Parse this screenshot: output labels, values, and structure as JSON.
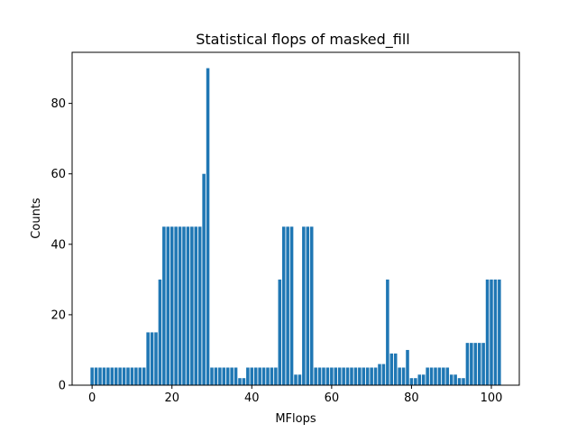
{
  "chart_data": {
    "type": "bar",
    "title": "Statistical flops of masked_fill",
    "xlabel": "MFlops",
    "ylabel": "Counts",
    "xlim": [
      -5,
      107
    ],
    "ylim": [
      0,
      94.5
    ],
    "xticks": [
      0,
      20,
      40,
      60,
      80,
      100
    ],
    "yticks": [
      0,
      20,
      40,
      60,
      80
    ],
    "bar_width": 0.8,
    "color": "#1f77b4",
    "grid": false,
    "x": [
      0,
      1,
      2,
      3,
      4,
      5,
      6,
      7,
      8,
      9,
      10,
      11,
      12,
      13,
      14,
      15,
      16,
      17,
      18,
      19,
      20,
      21,
      22,
      23,
      24,
      25,
      26,
      27,
      28,
      29,
      30,
      31,
      32,
      33,
      34,
      35,
      36,
      37,
      38,
      39,
      40,
      41,
      42,
      43,
      44,
      45,
      46,
      47,
      48,
      49,
      50,
      51,
      52,
      53,
      54,
      55,
      56,
      57,
      58,
      59,
      60,
      61,
      62,
      63,
      64,
      65,
      66,
      67,
      68,
      69,
      70,
      71,
      72,
      73,
      74,
      75,
      76,
      77,
      78,
      79,
      80,
      81,
      82,
      83,
      84,
      85,
      86,
      87,
      88,
      89,
      90,
      91,
      92,
      93,
      94,
      95,
      96,
      97,
      98,
      99,
      100,
      101,
      102
    ],
    "values": [
      5,
      5,
      5,
      5,
      5,
      5,
      5,
      5,
      5,
      5,
      5,
      5,
      5,
      5,
      15,
      15,
      15,
      30,
      45,
      45,
      45,
      45,
      45,
      45,
      45,
      45,
      45,
      45,
      60,
      90,
      5,
      5,
      5,
      5,
      5,
      5,
      5,
      2,
      2,
      5,
      5,
      5,
      5,
      5,
      5,
      5,
      5,
      30,
      45,
      45,
      45,
      3,
      3,
      45,
      45,
      45,
      5,
      5,
      5,
      5,
      5,
      5,
      5,
      5,
      5,
      5,
      5,
      5,
      5,
      5,
      5,
      5,
      6,
      6,
      30,
      9,
      9,
      5,
      5,
      10,
      2,
      2,
      3,
      3,
      5,
      5,
      5,
      5,
      5,
      5,
      3,
      3,
      2,
      2,
      12,
      12,
      12,
      12,
      12,
      30,
      30,
      30,
      30
    ]
  }
}
